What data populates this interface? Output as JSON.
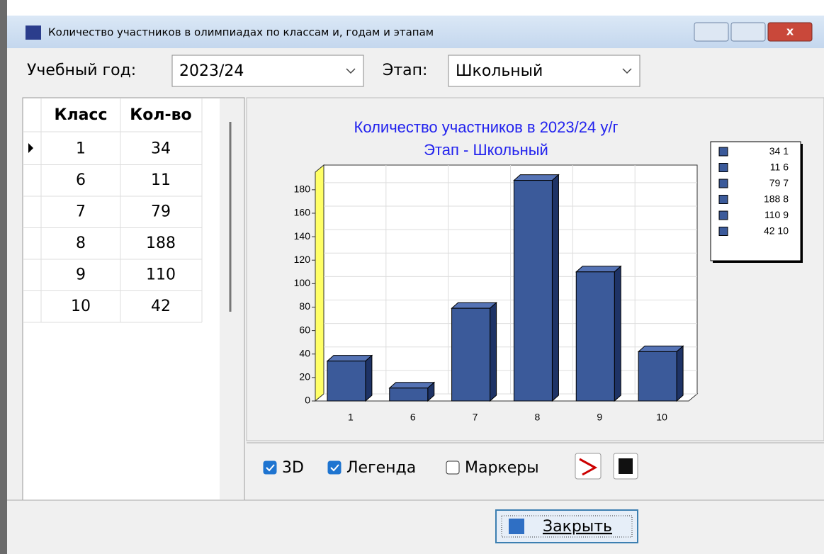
{
  "window": {
    "title": "Количество участников в олимпиадах по классам и, годам и этапам"
  },
  "filters": [
    {
      "label": "Учебный год:",
      "value": "2023/24"
    },
    {
      "label": "Этап:",
      "value": "Школьный"
    }
  ],
  "table": {
    "columns": [
      "Класс",
      "Кол-во"
    ],
    "rows": [
      [
        "1",
        "34"
      ],
      [
        "6",
        "11"
      ],
      [
        "7",
        "79"
      ],
      [
        "8",
        "188"
      ],
      [
        "9",
        "110"
      ],
      [
        "10",
        "42"
      ]
    ]
  },
  "chart_data": {
    "type": "bar",
    "title": "Количество участников в 2023/24 у/г",
    "subtitle": "Этап - Школьный",
    "categories": [
      "1",
      "6",
      "7",
      "8",
      "9",
      "10"
    ],
    "values": [
      34,
      11,
      79,
      188,
      110,
      42
    ],
    "color": "#3b5a9a",
    "ylim": [
      0,
      195
    ],
    "yticks": [
      0,
      20,
      40,
      60,
      80,
      100,
      120,
      140,
      160,
      180
    ],
    "grid": true,
    "legend": "top-right",
    "three_d": true
  },
  "options": [
    {
      "label": "3D",
      "checked": true
    },
    {
      "label": "Легенда",
      "checked": true
    },
    {
      "label": "Маркеры",
      "checked": false
    }
  ],
  "button": {
    "label": "Закрыть"
  }
}
